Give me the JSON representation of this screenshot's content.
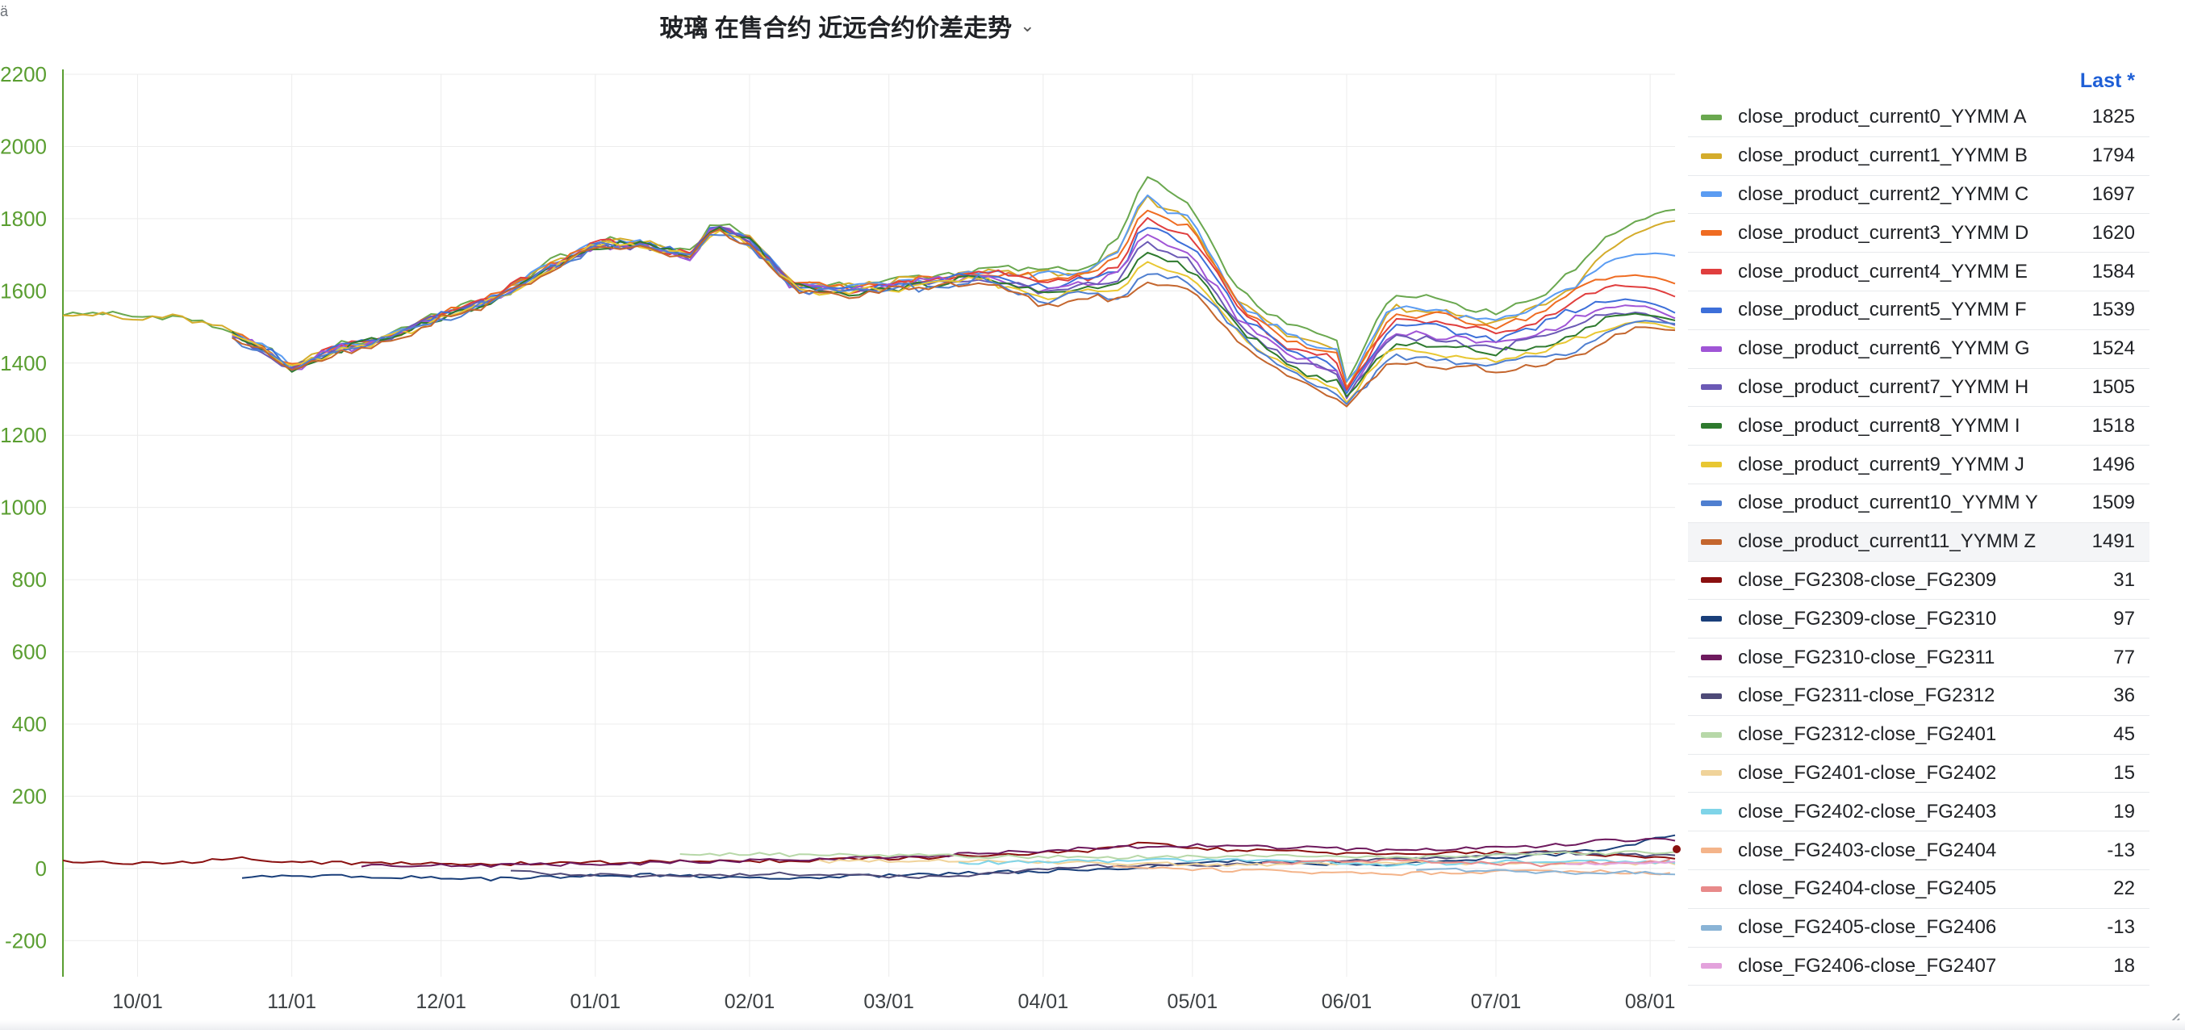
{
  "panel": {
    "title": "玻璃 在售合约 近远合约价差走势",
    "corner_glyph": "ä",
    "legend_header": "Last *",
    "icons": {
      "title_menu": "chevron-down-icon",
      "resize": "resize-handle-icon"
    },
    "colors": {
      "y_axis": "#5a9e31",
      "legend_header": "#1f5fd6",
      "grid": "#ececec"
    }
  },
  "legend": [
    {
      "name": "close_product_current0_YYMM A",
      "last": "1825",
      "color": "#6aa84f"
    },
    {
      "name": "close_product_current1_YYMM B",
      "last": "1794",
      "color": "#d4ac2b"
    },
    {
      "name": "close_product_current2_YYMM C",
      "last": "1697",
      "color": "#5b9cf2"
    },
    {
      "name": "close_product_current3_YYMM D",
      "last": "1620",
      "color": "#ef6c22"
    },
    {
      "name": "close_product_current4_YYMM E",
      "last": "1584",
      "color": "#e03e3e"
    },
    {
      "name": "close_product_current5_YYMM F",
      "last": "1539",
      "color": "#3d6fd9"
    },
    {
      "name": "close_product_current6_YYMM G",
      "last": "1524",
      "color": "#a055d6"
    },
    {
      "name": "close_product_current7_YYMM H",
      "last": "1505",
      "color": "#6b59b5"
    },
    {
      "name": "close_product_current8_YYMM I",
      "last": "1518",
      "color": "#2e7a2e"
    },
    {
      "name": "close_product_current9_YYMM J",
      "last": "1496",
      "color": "#e8c732"
    },
    {
      "name": "close_product_current10_YYMM Y",
      "last": "1509",
      "color": "#4f7fd0"
    },
    {
      "name": "close_product_current11_YYMM Z",
      "last": "1491",
      "color": "#c4662e"
    },
    {
      "name": "close_FG2308-close_FG2309",
      "last": "31",
      "color": "#8a1010"
    },
    {
      "name": "close_FG2309-close_FG2310",
      "last": "97",
      "color": "#1a3f7a"
    },
    {
      "name": "close_FG2310-close_FG2311",
      "last": "77",
      "color": "#6e1a5e"
    },
    {
      "name": "close_FG2311-close_FG2312",
      "last": "36",
      "color": "#4e4a78"
    },
    {
      "name": "close_FG2312-close_FG2401",
      "last": "45",
      "color": "#b7d8a8"
    },
    {
      "name": "close_FG2401-close_FG2402",
      "last": "15",
      "color": "#f0d39a"
    },
    {
      "name": "close_FG2402-close_FG2403",
      "last": "19",
      "color": "#7fd4e8"
    },
    {
      "name": "close_FG2403-close_FG2404",
      "last": "-13",
      "color": "#f4b48a"
    },
    {
      "name": "close_FG2404-close_FG2405",
      "last": "22",
      "color": "#e88a8a"
    },
    {
      "name": "close_FG2405-close_FG2406",
      "last": "-13",
      "color": "#8ab4d6"
    },
    {
      "name": "close_FG2406-close_FG2407",
      "last": "18",
      "color": "#e3a2dc"
    }
  ],
  "chart_data": {
    "type": "line",
    "title": "玻璃 在售合约 近远合约价差走势",
    "ylim": [
      -300,
      2200
    ],
    "yticks": [
      2200,
      2000,
      1800,
      1600,
      1400,
      1200,
      1000,
      800,
      600,
      400,
      200,
      0,
      -200
    ],
    "x_range": [
      "2022-09-16",
      "2023-08-06"
    ],
    "xticks": [
      {
        "date": "2022-10-01",
        "label": "10/01"
      },
      {
        "date": "2022-11-01",
        "label": "11/01"
      },
      {
        "date": "2022-12-01",
        "label": "12/01"
      },
      {
        "date": "2023-01-01",
        "label": "01/01"
      },
      {
        "date": "2023-02-01",
        "label": "02/01"
      },
      {
        "date": "2023-03-01",
        "label": "03/01"
      },
      {
        "date": "2023-04-01",
        "label": "04/01"
      },
      {
        "date": "2023-05-01",
        "label": "05/01"
      },
      {
        "date": "2023-06-01",
        "label": "06/01"
      },
      {
        "date": "2023-07-01",
        "label": "07/01"
      },
      {
        "date": "2023-08-01",
        "label": "08/01"
      }
    ],
    "grid": true,
    "legend_position": "right",
    "price_base": {
      "start_date": "2022-09-16",
      "dates": [
        "2022-09-16",
        "2022-10-01",
        "2022-10-10",
        "2022-10-20",
        "2022-10-28",
        "2022-11-01",
        "2022-11-10",
        "2022-11-20",
        "2022-12-01",
        "2022-12-10",
        "2022-12-20",
        "2023-01-01",
        "2023-01-10",
        "2023-01-20",
        "2023-01-25",
        "2023-02-01",
        "2023-02-10",
        "2023-02-20",
        "2023-03-01",
        "2023-03-10",
        "2023-03-20",
        "2023-04-01",
        "2023-04-10",
        "2023-04-17",
        "2023-04-21",
        "2023-05-01",
        "2023-05-10",
        "2023-05-20",
        "2023-05-30",
        "2023-06-01",
        "2023-06-10",
        "2023-06-20",
        "2023-07-01",
        "2023-07-10",
        "2023-07-20",
        "2023-08-01",
        "2023-08-06"
      ],
      "front": [
        1540,
        1525,
        1525,
        1490,
        1435,
        1390,
        1445,
        1475,
        1535,
        1575,
        1655,
        1735,
        1740,
        1700,
        1790,
        1745,
        1620,
        1610,
        1625,
        1640,
        1660,
        1665,
        1665,
        1750,
        1920,
        1830,
        1600,
        1500,
        1470,
        1350,
        1590,
        1580,
        1540,
        1590,
        1690,
        1760,
        1825
      ],
      "back": [
        1520,
        1510,
        1500,
        1470,
        1420,
        1380,
        1430,
        1460,
        1520,
        1560,
        1630,
        1720,
        1720,
        1690,
        1770,
        1730,
        1600,
        1590,
        1600,
        1610,
        1630,
        1560,
        1580,
        1570,
        1620,
        1600,
        1470,
        1360,
        1300,
        1280,
        1400,
        1390,
        1380,
        1400,
        1430,
        1520,
        1491
      ],
      "spread_scale": [
        1.0,
        1.0,
        1.0,
        1.0,
        1.0,
        1.0,
        1.0,
        1.0,
        1.0,
        1.0,
        1.0,
        1.0,
        1.0,
        1.0,
        1.0,
        1.0,
        1.0,
        1.0,
        1.0,
        1.0,
        1.0,
        1.0,
        1.0,
        1.0,
        1.0,
        1.0,
        1.0,
        1.0,
        1.0,
        1.0,
        1.0,
        1.0,
        1.0,
        1.0,
        1.0,
        1.0,
        1.0
      ]
    },
    "spreads": [
      {
        "name": "close_FG2308-close_FG2309",
        "dates": [
          "2022-09-16",
          "2022-10-05",
          "2022-10-20",
          "2022-11-10",
          "2022-12-10",
          "2023-01-10",
          "2023-02-10",
          "2023-03-10",
          "2023-04-10",
          "2023-04-20",
          "2023-05-10",
          "2023-06-10",
          "2023-07-10",
          "2023-08-06"
        ],
        "values": [
          20,
          12,
          28,
          15,
          12,
          18,
          22,
          30,
          48,
          68,
          50,
          40,
          45,
          31
        ]
      },
      {
        "name": "close_FG2309-close_FG2310",
        "dates": [
          "2022-10-22",
          "2022-11-10",
          "2022-12-10",
          "2023-01-10",
          "2023-02-10",
          "2023-03-10",
          "2023-04-10",
          "2023-05-10",
          "2023-06-10",
          "2023-07-10",
          "2023-07-25",
          "2023-08-06"
        ],
        "values": [
          -25,
          -20,
          -30,
          -18,
          -28,
          -15,
          -5,
          20,
          10,
          35,
          55,
          97
        ]
      },
      {
        "name": "close_FG2310-close_FG2311",
        "dates": [
          "2022-11-15",
          "2022-12-10",
          "2023-01-10",
          "2023-02-10",
          "2023-03-10",
          "2023-04-10",
          "2023-05-01",
          "2023-06-10",
          "2023-07-10",
          "2023-07-25",
          "2023-08-06"
        ],
        "values": [
          10,
          8,
          15,
          25,
          35,
          55,
          65,
          50,
          60,
          80,
          77
        ]
      },
      {
        "name": "close_FG2311-close_FG2312",
        "dates": [
          "2022-12-15",
          "2023-01-10",
          "2023-02-10",
          "2023-03-10",
          "2023-04-10",
          "2023-05-10",
          "2023-06-10",
          "2023-07-10",
          "2023-08-06"
        ],
        "values": [
          -10,
          -20,
          -15,
          -25,
          5,
          10,
          25,
          45,
          36
        ]
      },
      {
        "name": "close_FG2312-close_FG2401",
        "dates": [
          "2023-01-18",
          "2023-02-10",
          "2023-03-10",
          "2023-04-10",
          "2023-05-10",
          "2023-06-10",
          "2023-07-10",
          "2023-08-06"
        ],
        "values": [
          40,
          38,
          35,
          30,
          35,
          30,
          40,
          45
        ]
      },
      {
        "name": "close_FG2401-close_FG2402",
        "dates": [
          "2023-02-15",
          "2023-03-10",
          "2023-04-10",
          "2023-05-10",
          "2023-06-10",
          "2023-07-10",
          "2023-08-06"
        ],
        "values": [
          20,
          22,
          15,
          10,
          18,
          12,
          15
        ]
      },
      {
        "name": "close_FG2402-close_FG2403",
        "dates": [
          "2023-03-15",
          "2023-04-10",
          "2023-05-10",
          "2023-06-10",
          "2023-07-10",
          "2023-08-06"
        ],
        "values": [
          15,
          20,
          25,
          10,
          20,
          19
        ]
      },
      {
        "name": "close_FG2403-close_FG2404",
        "dates": [
          "2023-04-15",
          "2023-05-10",
          "2023-06-10",
          "2023-07-10",
          "2023-08-06"
        ],
        "values": [
          5,
          -5,
          -15,
          -5,
          -13
        ]
      },
      {
        "name": "close_FG2404-close_FG2405",
        "dates": [
          "2023-05-15",
          "2023-06-10",
          "2023-07-10",
          "2023-08-06"
        ],
        "values": [
          15,
          20,
          10,
          22
        ]
      },
      {
        "name": "close_FG2405-close_FG2406",
        "dates": [
          "2023-06-15",
          "2023-07-10",
          "2023-08-06"
        ],
        "values": [
          0,
          -10,
          -13
        ]
      },
      {
        "name": "close_FG2406-close_FG2407",
        "dates": [
          "2023-07-15",
          "2023-08-06"
        ],
        "values": [
          15,
          18
        ]
      }
    ]
  }
}
